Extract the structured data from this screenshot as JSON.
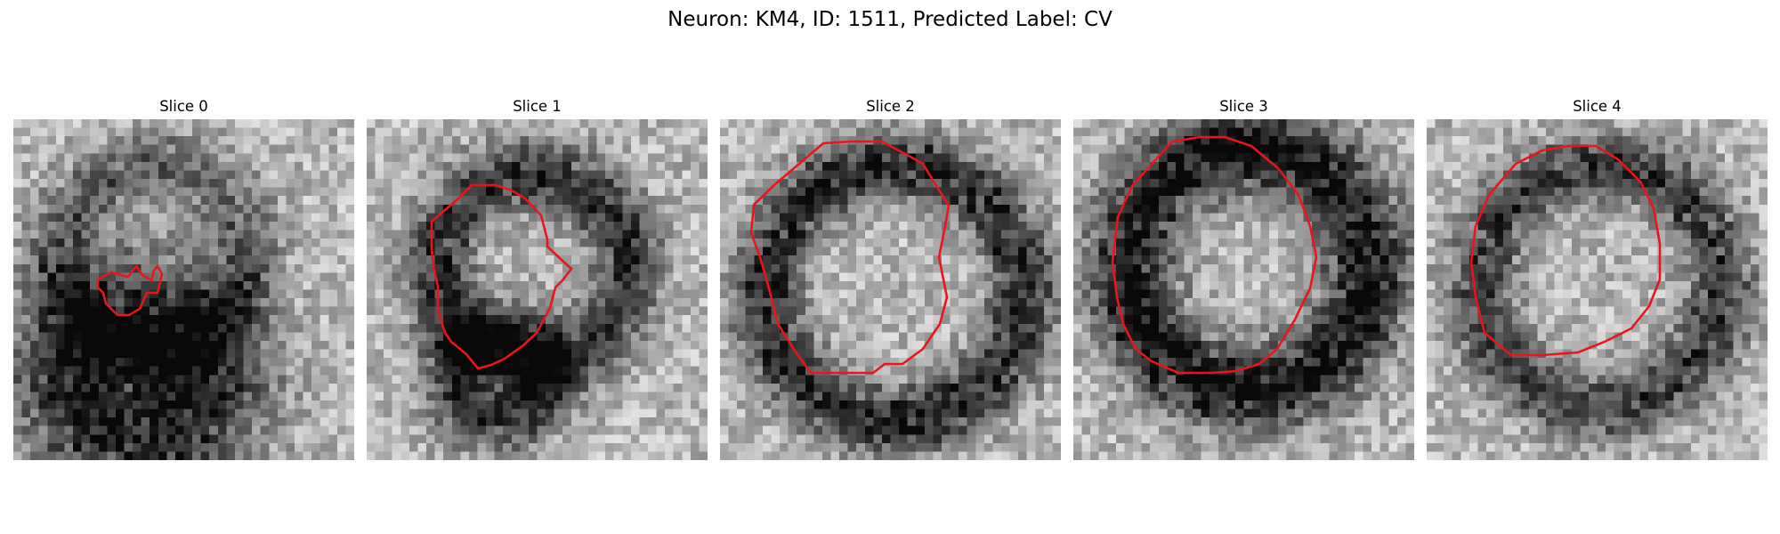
{
  "figure": {
    "title": "Neuron: KM4, ID: 1511, Predicted Label: CV"
  },
  "contour_color": "#e8161a",
  "slices": [
    {
      "label": "Slice 0"
    },
    {
      "label": "Slice 1"
    },
    {
      "label": "Slice 2"
    },
    {
      "label": "Slice 3"
    },
    {
      "label": "Slice 4"
    }
  ]
}
